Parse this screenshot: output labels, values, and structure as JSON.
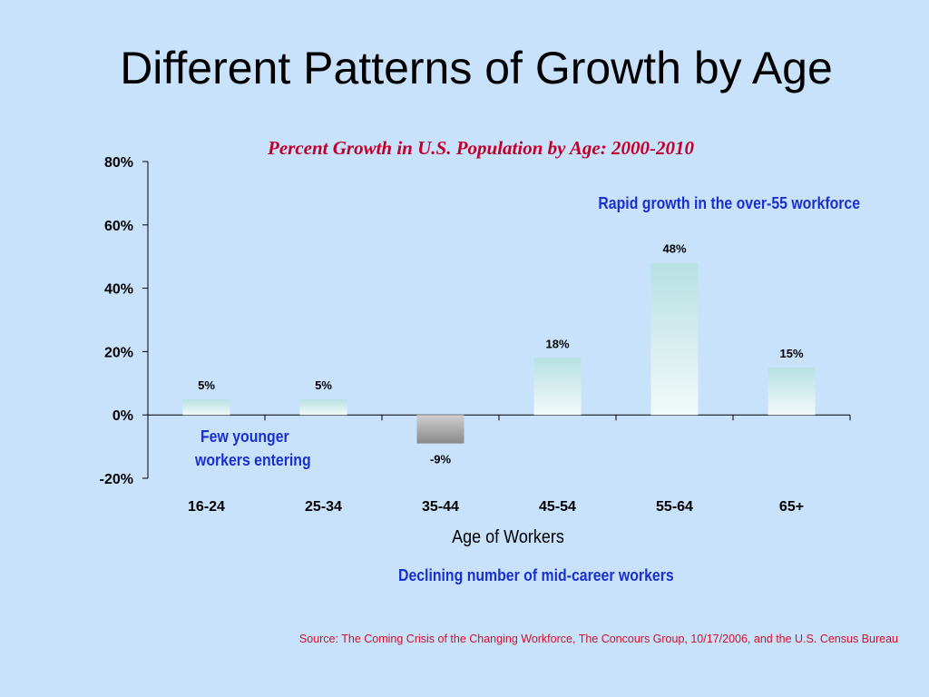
{
  "slide": {
    "title": "Different Patterns of Growth by Age",
    "source": "Source: The Coming Crisis of the Changing Workforce, The Concours Group, 10/17/2006, and the  U.S. Census Bureau"
  },
  "annotations": {
    "rapid_growth": "Rapid growth in the over-55 workforce",
    "few_younger_line1": "Few younger",
    "few_younger_line2": "workers entering",
    "declining_mid_career": "Declining number of mid-career workers"
  },
  "colors": {
    "background": "#c9e2fb",
    "title_red": "#c0002a",
    "callout_blue": "#1a2fd0",
    "bar_positive_top": "#b8e0e2",
    "bar_positive_bottom": "#f2fafa",
    "bar_negative_top": "#cfcfcf",
    "bar_negative_bottom": "#8a8a8a"
  },
  "chart_data": {
    "type": "bar",
    "title": "Percent Growth in U.S. Population by Age:  2000-2010",
    "xlabel": "Age of Workers",
    "ylabel": "",
    "categories": [
      "16-24",
      "25-34",
      "35-44",
      "45-54",
      "55-64",
      "65+"
    ],
    "values": [
      5,
      5,
      -9,
      18,
      48,
      15
    ],
    "data_labels": [
      "5%",
      "5%",
      "-9%",
      "18%",
      "48%",
      "15%"
    ],
    "ylim": [
      -20,
      80
    ],
    "y_ticks": [
      -20,
      0,
      20,
      40,
      60,
      80
    ],
    "y_tick_labels": [
      "-20%",
      "0%",
      "20%",
      "40%",
      "60%",
      "80%"
    ],
    "grid": false,
    "legend": "none"
  }
}
